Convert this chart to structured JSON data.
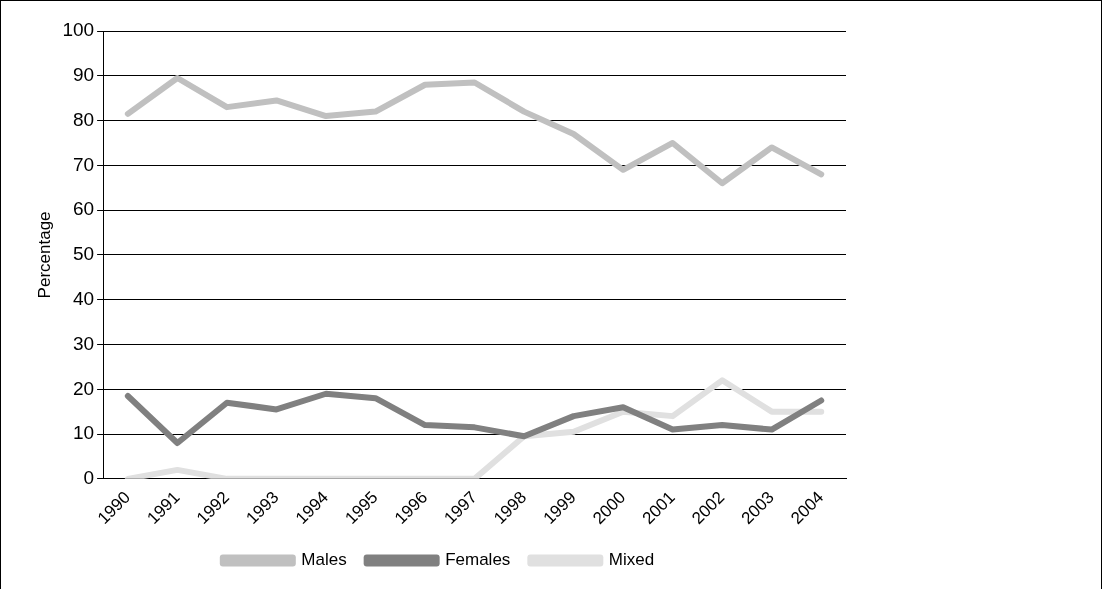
{
  "chart_data": {
    "type": "line",
    "ylabel": "Percentage",
    "categories": [
      "1990",
      "1991",
      "1992",
      "1993",
      "1994",
      "1995",
      "1996",
      "1997",
      "1998",
      "1999",
      "2000",
      "2001",
      "2002",
      "2003",
      "2004"
    ],
    "series": [
      {
        "name": "Males",
        "color": "#c0c0c0",
        "values": [
          81.5,
          89.5,
          83,
          84.5,
          81,
          82,
          88,
          88.5,
          82,
          77,
          69,
          75,
          66,
          74,
          68
        ]
      },
      {
        "name": "Females",
        "color": "#808080",
        "values": [
          18.5,
          8,
          17,
          15.5,
          19,
          18,
          12,
          11.5,
          9.5,
          14,
          16,
          11,
          12,
          11,
          17.5
        ]
      },
      {
        "name": "Mixed",
        "color": "#e0e0e0",
        "values": [
          0,
          2,
          0,
          0,
          0,
          0,
          0,
          0,
          9.5,
          10.5,
          15,
          14,
          22,
          15,
          15
        ]
      }
    ],
    "ylim": [
      0,
      100
    ],
    "yticks": [
      0,
      10,
      20,
      30,
      40,
      50,
      60,
      70,
      80,
      90,
      100
    ],
    "grid": "y",
    "legend": "bottom",
    "marker": "none",
    "line_style": "solid"
  }
}
